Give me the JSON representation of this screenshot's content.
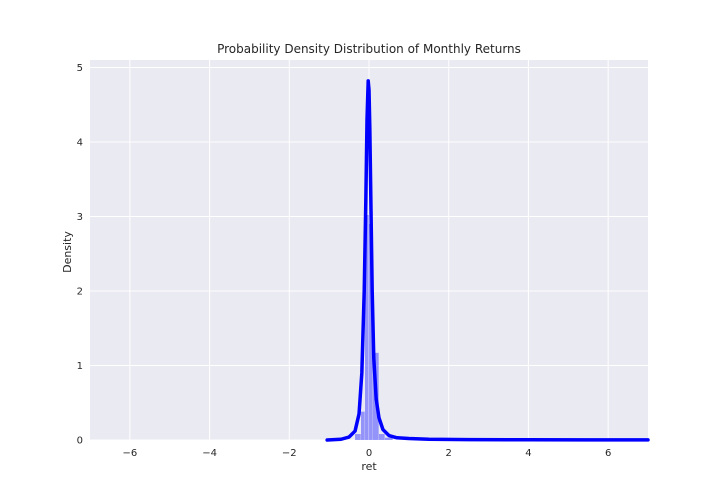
{
  "chart_data": {
    "type": "area",
    "title": "Probability Density Distribution of Monthly Returns",
    "xlabel": "ret",
    "ylabel": "Density",
    "xlim": [
      -7,
      7
    ],
    "ylim": [
      0,
      5.1
    ],
    "grid": true,
    "x_ticks": [
      -6,
      -4,
      -2,
      0,
      2,
      4,
      6
    ],
    "y_ticks": [
      0,
      1,
      2,
      3,
      4,
      5
    ],
    "colors": {
      "kde": "#0000ff",
      "histogram": "#6b6bff",
      "background": "#eaeaf2",
      "grid": "#ffffff"
    },
    "series": [
      {
        "kind": "histogram",
        "bins": [
          {
            "x0": -0.35,
            "x1": -0.2,
            "value": 0.08
          },
          {
            "x0": -0.2,
            "x1": -0.1,
            "value": 0.38
          },
          {
            "x0": -0.1,
            "x1": 0.0,
            "value": 3.02
          },
          {
            "x0": 0.0,
            "x1": 0.1,
            "value": 2.9
          },
          {
            "x0": 0.1,
            "x1": 0.25,
            "value": 1.17
          },
          {
            "x0": 0.25,
            "x1": 0.4,
            "value": 0.08
          },
          {
            "x0": 0.4,
            "x1": 0.6,
            "value": 0.03
          }
        ]
      },
      {
        "kind": "kde",
        "x": [
          -1.05,
          -0.7,
          -0.5,
          -0.35,
          -0.25,
          -0.18,
          -0.12,
          -0.08,
          -0.05,
          -0.02,
          0.0,
          0.02,
          0.05,
          0.08,
          0.12,
          0.18,
          0.25,
          0.35,
          0.5,
          0.7,
          1.0,
          1.5,
          2.5,
          4.0,
          5.5,
          7.0
        ],
        "y": [
          0.0,
          0.01,
          0.04,
          0.12,
          0.35,
          0.9,
          2.0,
          3.2,
          4.3,
          4.82,
          4.7,
          4.2,
          3.1,
          2.0,
          1.1,
          0.55,
          0.3,
          0.14,
          0.06,
          0.03,
          0.02,
          0.01,
          0.005,
          0.003,
          0.002,
          0.002
        ]
      }
    ]
  }
}
